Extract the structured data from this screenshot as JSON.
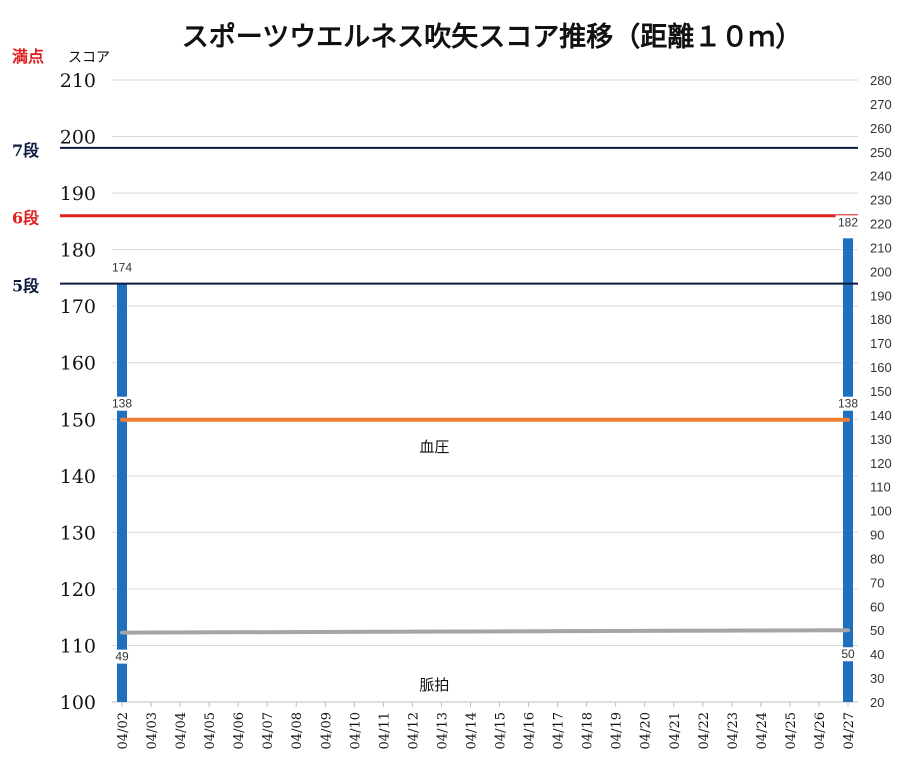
{
  "chart_data": {
    "type": "bar",
    "title": "スポーツウエルネス吹矢スコア推移（距離１０ｍ）",
    "left_axis": {
      "label": "スコア",
      "ylim": [
        100,
        210
      ],
      "ticks": [
        "100",
        "110",
        "120",
        "130",
        "140",
        "150",
        "160",
        "170",
        "180",
        "190",
        "200",
        "210"
      ]
    },
    "right_axis": {
      "ylim": [
        20,
        280
      ],
      "ticks": [
        "20",
        "30",
        "40",
        "50",
        "60",
        "70",
        "80",
        "90",
        "100",
        "110",
        "120",
        "130",
        "140",
        "150",
        "160",
        "170",
        "180",
        "190",
        "200",
        "210",
        "220",
        "230",
        "240",
        "250",
        "260",
        "270",
        "280"
      ]
    },
    "categories": [
      "04/02",
      "04/03",
      "04/04",
      "04/05",
      "04/06",
      "04/07",
      "04/08",
      "04/09",
      "04/10",
      "04/11",
      "04/12",
      "04/13",
      "04/14",
      "04/15",
      "04/16",
      "04/17",
      "04/18",
      "04/19",
      "04/20",
      "04/21",
      "04/22",
      "04/23",
      "04/24",
      "04/25",
      "04/26",
      "04/27"
    ],
    "score_series": {
      "color": "#1f6fbf",
      "points": [
        {
          "x": "04/02",
          "y": 174
        },
        {
          "x": "04/27",
          "y": 182
        }
      ]
    },
    "lines": [
      {
        "name": "血圧",
        "axis": "right",
        "color": "#ed7d31",
        "values": [
          138,
          138
        ],
        "label_x": "04/12"
      },
      {
        "name": "脈拍",
        "axis": "right",
        "color": "#a5a5a5",
        "values": [
          49,
          50
        ],
        "label_x": "04/12"
      }
    ],
    "reference_lines": [
      {
        "label": "満点",
        "value": 210,
        "color": "#e02020",
        "draw_line": false
      },
      {
        "label": "7段",
        "value": 198,
        "color": "#0d1b3e",
        "draw_line": true
      },
      {
        "label": "6段",
        "value": 186,
        "color": "#e02020",
        "draw_line": true
      },
      {
        "label": "5段",
        "value": 174,
        "color": "#0d1b3e",
        "draw_line": true
      }
    ],
    "data_labels": [
      {
        "text": "174",
        "x": "04/02",
        "axis": "left",
        "y": 174
      },
      {
        "text": "182",
        "x": "04/27",
        "axis": "left",
        "y": 182
      },
      {
        "text": "138",
        "x": "04/02",
        "axis": "right",
        "y": 138
      },
      {
        "text": "138",
        "x": "04/27",
        "axis": "right",
        "y": 138
      },
      {
        "text": "49",
        "x": "04/02",
        "axis": "right",
        "y": 49
      },
      {
        "text": "50",
        "x": "04/27",
        "axis": "right",
        "y": 50
      }
    ],
    "grid": true
  }
}
